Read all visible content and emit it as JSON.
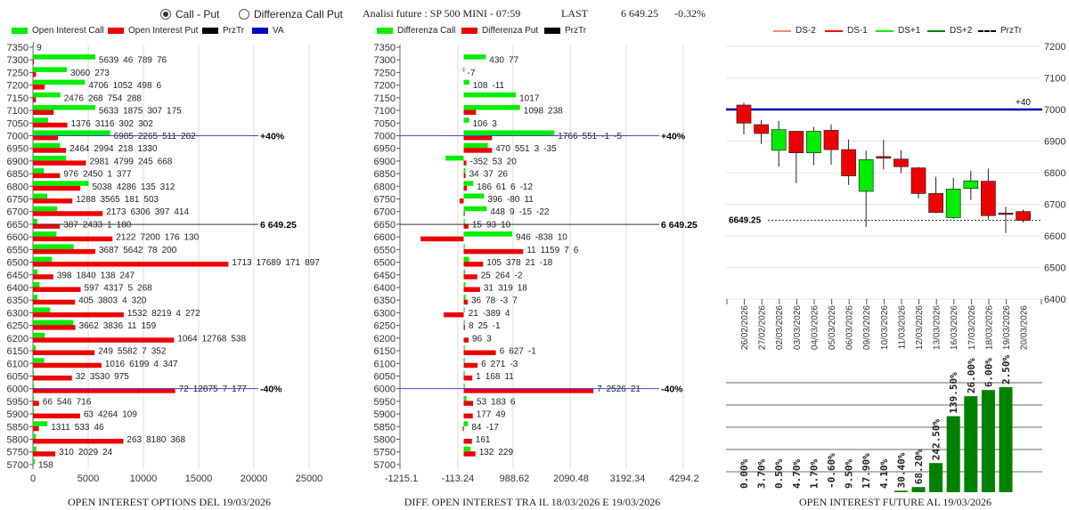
{
  "header": {
    "radio_call_put": "Call - Put",
    "radio_diff": "Differenza Call Put",
    "selected": "Call - Put",
    "title": "Analisi future : SP 500 MINI - 07:59",
    "last_label": "LAST",
    "last_value": "6 649.25",
    "change": "-0.32%"
  },
  "colors": {
    "call": "#00ee00",
    "put": "#ee0000",
    "przTr": "#000000",
    "va": "#0000cc",
    "ds2": "#ff8080",
    "ds1": "#ee0000",
    "ds_plus1": "#00ee00",
    "ds_plus2": "#008000",
    "oi_bar": "#008000"
  },
  "chart_data": [
    {
      "type": "bar",
      "orientation": "horizontal",
      "title": "OPEN INTEREST OPTIONS DEL 19/03/2026",
      "legend": [
        "Open Interest Call",
        "Open Interest Put",
        "PrzTr",
        "VA"
      ],
      "xlim": [
        0,
        25000
      ],
      "xticks": [
        "0",
        "5000",
        "10000",
        "15000",
        "20000",
        "25000"
      ],
      "reference_lines": [
        {
          "strike": 7000,
          "label": "+40%",
          "kind": "VA"
        },
        {
          "strike": 6649.25,
          "label": "6 649.25",
          "kind": "PrzTr"
        },
        {
          "strike": 6000,
          "label": "-40%",
          "kind": "VA"
        }
      ],
      "rows": [
        {
          "strike": 7350,
          "call": 9,
          "put": 0,
          "call_extra": "",
          "put_extra": ""
        },
        {
          "strike": 7300,
          "call": 5639,
          "put": 46,
          "call_extra": "789",
          "put_extra": "76"
        },
        {
          "strike": 7250,
          "call": 3060,
          "put": 273,
          "call_extra": "",
          "put_extra": ""
        },
        {
          "strike": 7200,
          "call": 4706,
          "put": 1052,
          "call_extra": "498",
          "put_extra": "6"
        },
        {
          "strike": 7150,
          "call": 2476,
          "put": 268,
          "call_extra": "754",
          "put_extra": "288"
        },
        {
          "strike": 7100,
          "call": 5633,
          "put": 1875,
          "call_extra": "307",
          "put_extra": "175"
        },
        {
          "strike": 7050,
          "call": 1376,
          "put": 3116,
          "call_extra": "302",
          "put_extra": "302"
        },
        {
          "strike": 7000,
          "call": 6985,
          "put": 2265,
          "call_extra": "511",
          "put_extra": "282"
        },
        {
          "strike": 6950,
          "call": 2464,
          "put": 2994,
          "call_extra": "218",
          "put_extra": "1330"
        },
        {
          "strike": 6900,
          "call": 2981,
          "put": 4799,
          "call_extra": "245",
          "put_extra": "668"
        },
        {
          "strike": 6850,
          "call": 976,
          "put": 2450,
          "call_extra": "1",
          "put_extra": "377"
        },
        {
          "strike": 6800,
          "call": 5038,
          "put": 4286,
          "call_extra": "135",
          "put_extra": "312"
        },
        {
          "strike": 6750,
          "call": 1288,
          "put": 3565,
          "call_extra": "181",
          "put_extra": "503"
        },
        {
          "strike": 6700,
          "call": 2173,
          "put": 6306,
          "call_extra": "397",
          "put_extra": "414"
        },
        {
          "strike": 6650,
          "call": 387,
          "put": 2433,
          "call_extra": "1",
          "put_extra": "180"
        },
        {
          "strike": 6600,
          "call": 2122,
          "put": 7200,
          "call_extra": "176",
          "put_extra": "130"
        },
        {
          "strike": 6550,
          "call": 3687,
          "put": 5642,
          "call_extra": "78",
          "put_extra": "200"
        },
        {
          "strike": 6500,
          "call": 1713,
          "put": 17689,
          "call_extra": "171",
          "put_extra": "897"
        },
        {
          "strike": 6450,
          "call": 398,
          "put": 1840,
          "call_extra": "138",
          "put_extra": "247"
        },
        {
          "strike": 6400,
          "call": 597,
          "put": 4317,
          "call_extra": "5",
          "put_extra": "268"
        },
        {
          "strike": 6350,
          "call": 405,
          "put": 3803,
          "call_extra": "4",
          "put_extra": "320"
        },
        {
          "strike": 6300,
          "call": 1532,
          "put": 8219,
          "call_extra": "4",
          "put_extra": "272"
        },
        {
          "strike": 6250,
          "call": 3662,
          "put": 3836,
          "call_extra": "11",
          "put_extra": "159"
        },
        {
          "strike": 6200,
          "call": 1064,
          "put": 12768,
          "call_extra": "",
          "put_extra": "538"
        },
        {
          "strike": 6150,
          "call": 249,
          "put": 5582,
          "call_extra": "7",
          "put_extra": "352"
        },
        {
          "strike": 6100,
          "call": 1016,
          "put": 6199,
          "call_extra": "4",
          "put_extra": "347"
        },
        {
          "strike": 6050,
          "call": 32,
          "put": 3530,
          "call_extra": "",
          "put_extra": "975"
        },
        {
          "strike": 6000,
          "call": 72,
          "put": 12875,
          "call_extra": "7",
          "put_extra": "177"
        },
        {
          "strike": 5950,
          "call": 66,
          "put": 546,
          "call_extra": "",
          "put_extra": "716"
        },
        {
          "strike": 5900,
          "call": 63,
          "put": 4264,
          "call_extra": "",
          "put_extra": "109"
        },
        {
          "strike": 5850,
          "call": 1311,
          "put": 533,
          "call_extra": "",
          "put_extra": "46"
        },
        {
          "strike": 5800,
          "call": 263,
          "put": 8180,
          "call_extra": "",
          "put_extra": "368"
        },
        {
          "strike": 5750,
          "call": 310,
          "put": 2029,
          "call_extra": "",
          "put_extra": "24"
        },
        {
          "strike": 5700,
          "call": 158,
          "put": 0,
          "call_extra": "",
          "put_extra": ""
        }
      ]
    },
    {
      "type": "bar",
      "orientation": "horizontal",
      "title": "DIFF. OPEN INTEREST TRA IL 18/03/2026 E 19/03/2026",
      "legend": [
        "Differenza Call",
        "Differenza Put",
        "PrzTr"
      ],
      "xlim": [
        -1215.1,
        4294.2
      ],
      "xticks": [
        "-1215.1",
        "-113.24",
        "988.62",
        "2090.48",
        "3192.34",
        "4294.2"
      ],
      "reference_lines": [
        {
          "strike": 7000,
          "label": "+40%",
          "kind": "VA"
        },
        {
          "strike": 6649.25,
          "label": "6 649.25",
          "kind": "PrzTr"
        },
        {
          "strike": 6000,
          "label": "-40%",
          "kind": "VA"
        }
      ],
      "rows": [
        {
          "strike": 7350,
          "call": 0,
          "put": 0,
          "call_extra": "",
          "put_extra": ""
        },
        {
          "strike": 7300,
          "call": 430,
          "put": 0,
          "call_extra": "77",
          "put_extra": ""
        },
        {
          "strike": 7250,
          "call": -7,
          "put": 0,
          "call_extra": "",
          "put_extra": ""
        },
        {
          "strike": 7200,
          "call": 108,
          "put": 0,
          "call_extra": "-11",
          "put_extra": ""
        },
        {
          "strike": 7150,
          "call": 1017,
          "put": 0,
          "call_extra": "",
          "put_extra": ""
        },
        {
          "strike": 7100,
          "call": 1098,
          "put": 238,
          "call_extra": "",
          "put_extra": ""
        },
        {
          "strike": 7050,
          "call": 106,
          "put": 0,
          "call_extra": "3",
          "put_extra": ""
        },
        {
          "strike": 7000,
          "call": 1766,
          "put": 551,
          "call_extra": "-1",
          "put_extra": "-5"
        },
        {
          "strike": 6950,
          "call": 470,
          "put": 551,
          "call_extra": "3",
          "put_extra": "-35"
        },
        {
          "strike": 6900,
          "call": -352,
          "put": 53,
          "call_extra": "20",
          "put_extra": ""
        },
        {
          "strike": 6850,
          "call": 34,
          "put": 37,
          "call_extra": "26",
          "put_extra": ""
        },
        {
          "strike": 6800,
          "call": 186,
          "put": 61,
          "call_extra": "6",
          "put_extra": "-12"
        },
        {
          "strike": 6750,
          "call": 396,
          "put": -80,
          "call_extra": "11",
          "put_extra": ""
        },
        {
          "strike": 6700,
          "call": 448,
          "put": 9,
          "call_extra": "-15",
          "put_extra": "-22"
        },
        {
          "strike": 6650,
          "call": 15,
          "put": 93,
          "call_extra": "10",
          "put_extra": ""
        },
        {
          "strike": 6600,
          "call": 946,
          "put": -838,
          "call_extra": "10",
          "put_extra": ""
        },
        {
          "strike": 6550,
          "call": 11,
          "put": 1159,
          "call_extra": "7",
          "put_extra": "6"
        },
        {
          "strike": 6500,
          "call": 105,
          "put": 378,
          "call_extra": "21",
          "put_extra": "-18"
        },
        {
          "strike": 6450,
          "call": 25,
          "put": 264,
          "call_extra": "",
          "put_extra": "-2"
        },
        {
          "strike": 6400,
          "call": 31,
          "put": 319,
          "call_extra": "",
          "put_extra": "18"
        },
        {
          "strike": 6350,
          "call": 36,
          "put": 78,
          "call_extra": "-3",
          "put_extra": "7"
        },
        {
          "strike": 6300,
          "call": 21,
          "put": -389,
          "call_extra": "",
          "put_extra": "4"
        },
        {
          "strike": 6250,
          "call": 8,
          "put": 25,
          "call_extra": "",
          "put_extra": "-1"
        },
        {
          "strike": 6200,
          "call": 0,
          "put": 96,
          "call_extra": "",
          "put_extra": "3"
        },
        {
          "strike": 6150,
          "call": 6,
          "put": 627,
          "call_extra": "",
          "put_extra": "-1"
        },
        {
          "strike": 6100,
          "call": 6,
          "put": 271,
          "call_extra": "",
          "put_extra": "-3"
        },
        {
          "strike": 6050,
          "call": 1,
          "put": 168,
          "call_extra": "",
          "put_extra": "11"
        },
        {
          "strike": 6000,
          "call": 7,
          "put": 2526,
          "call_extra": "",
          "put_extra": "21"
        },
        {
          "strike": 5950,
          "call": 53,
          "put": 183,
          "call_extra": "",
          "put_extra": "6"
        },
        {
          "strike": 5900,
          "call": 0,
          "put": 177,
          "call_extra": "",
          "put_extra": "49"
        },
        {
          "strike": 5850,
          "call": 84,
          "put": -17,
          "call_extra": "",
          "put_extra": ""
        },
        {
          "strike": 5800,
          "call": 0,
          "put": 161,
          "call_extra": "",
          "put_extra": ""
        },
        {
          "strike": 5750,
          "call": 132,
          "put": 229,
          "call_extra": "",
          "put_extra": ""
        },
        {
          "strike": 5700,
          "call": 0,
          "put": 0,
          "call_extra": "",
          "put_extra": ""
        }
      ]
    },
    {
      "type": "candlestick",
      "legend": [
        "DS-2",
        "DS-1",
        "DS+1",
        "DS+2",
        "PrzTr"
      ],
      "ylim": [
        6400,
        7200
      ],
      "yticks": [
        "6400",
        "6500",
        "6600",
        "6700",
        "6800",
        "6900",
        "7000",
        "7100",
        "7200"
      ],
      "grid": true,
      "level_line": {
        "value": 7000,
        "label": "+40"
      },
      "przTr": {
        "value": 6649.25,
        "label": "6649.25"
      },
      "candles": [
        {
          "date": "26/02/2026",
          "open": 7014,
          "high": 7021,
          "low": 6921,
          "close": 6957
        },
        {
          "date": "27/02/2026",
          "open": 6952,
          "high": 6967,
          "low": 6891,
          "close": 6924
        },
        {
          "date": "02/03/2026",
          "open": 6871,
          "high": 6964,
          "low": 6819,
          "close": 6936
        },
        {
          "date": "03/03/2026",
          "open": 6931,
          "high": 6931,
          "low": 6767,
          "close": 6863
        },
        {
          "date": "04/03/2026",
          "open": 6863,
          "high": 6945,
          "low": 6824,
          "close": 6931
        },
        {
          "date": "05/03/2026",
          "open": 6934,
          "high": 6953,
          "low": 6825,
          "close": 6873
        },
        {
          "date": "06/03/2026",
          "open": 6873,
          "high": 6905,
          "low": 6761,
          "close": 6790
        },
        {
          "date": "09/03/2026",
          "open": 6741,
          "high": 6870,
          "low": 6628,
          "close": 6841
        },
        {
          "date": "10/03/2026",
          "open": 6851,
          "high": 6904,
          "low": 6810,
          "close": 6846
        },
        {
          "date": "11/03/2026",
          "open": 6843,
          "high": 6871,
          "low": 6799,
          "close": 6819
        },
        {
          "date": "12/03/2026",
          "open": 6815,
          "high": 6818,
          "low": 6719,
          "close": 6734
        },
        {
          "date": "13/03/2026",
          "open": 6734,
          "high": 6787,
          "low": 6672,
          "close": 6674
        },
        {
          "date": "16/03/2026",
          "open": 6658,
          "high": 6784,
          "low": 6654,
          "close": 6748
        },
        {
          "date": "17/03/2026",
          "open": 6750,
          "high": 6806,
          "low": 6714,
          "close": 6774
        },
        {
          "date": "18/03/2026",
          "open": 6773,
          "high": 6813,
          "low": 6651,
          "close": 6664
        },
        {
          "date": "19/03/2026",
          "open": 6672,
          "high": 6692,
          "low": 6609,
          "close": 6668
        },
        {
          "date": "20/03/2026",
          "open": 6677,
          "high": 6683,
          "low": 6642,
          "close": 6649
        }
      ]
    },
    {
      "type": "bar",
      "title": "OPEN INTEREST FUTURE AL 19/03/2026",
      "categories": [
        "26/02/2026",
        "27/02/2026",
        "02/03/2026",
        "03/03/2026",
        "04/03/2026",
        "05/03/2026",
        "06/03/2026",
        "09/03/2026",
        "10/03/2026",
        "11/03/2026",
        "12/03/2026",
        "13/03/2026",
        "16/03/2026",
        "17/03/2026",
        "18/03/2026",
        "19/03/2026"
      ],
      "labels": [
        "0.00%",
        "3.70%",
        "0.50%",
        "4.70%",
        "1.70%",
        "-0.60%",
        "9.50%",
        "17.90%",
        "4.10%",
        "30.40%",
        "68.20%",
        "242.50%",
        "139.50%",
        "26.00%",
        "6.00%",
        "2.50%"
      ],
      "relative_level": [
        0,
        0,
        0,
        0,
        0,
        0,
        0,
        0,
        0,
        0.014,
        0.049,
        0.278,
        0.724,
        0.914,
        0.973,
        1.0
      ],
      "grid": true
    }
  ]
}
